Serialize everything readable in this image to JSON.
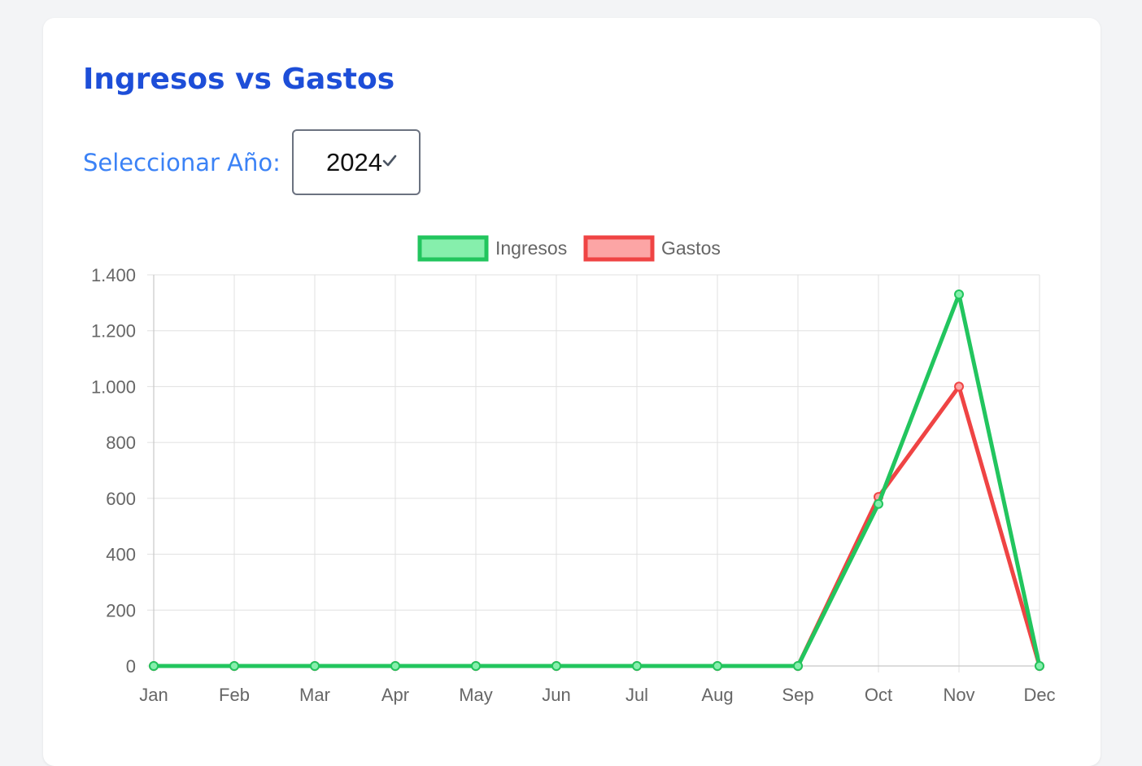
{
  "card": {
    "title": "Ingresos vs Gastos",
    "year_label": "Seleccionar Año:",
    "year_selected": "2024",
    "select_icon": "chevron-down-icon"
  },
  "colors": {
    "title": "#1d4ed8",
    "label": "#3b82f6",
    "ingresos_line": "#22c55e",
    "ingresos_fill": "#86efac",
    "gastos_line": "#ef4444",
    "gastos_fill": "#fca5a5",
    "grid": "#e0e0e0",
    "tick": "#666666"
  },
  "chart_data": {
    "type": "line",
    "categories": [
      "Jan",
      "Feb",
      "Mar",
      "Apr",
      "May",
      "Jun",
      "Jul",
      "Aug",
      "Sep",
      "Oct",
      "Nov",
      "Dec"
    ],
    "series": [
      {
        "name": "Ingresos",
        "values": [
          0,
          0,
          0,
          0,
          0,
          0,
          0,
          0,
          0,
          580,
          1330,
          0
        ]
      },
      {
        "name": "Gastos",
        "values": [
          0,
          0,
          0,
          0,
          0,
          0,
          0,
          0,
          0,
          605,
          1000,
          0
        ]
      }
    ],
    "ylim": [
      0,
      1400
    ],
    "yticks": [
      0,
      200,
      400,
      600,
      800,
      1000,
      1200,
      1400
    ],
    "ytick_labels": [
      "0",
      "200",
      "400",
      "600",
      "800",
      "1.000",
      "1.200",
      "1.400"
    ],
    "grid": true,
    "legend_position": "top-center"
  }
}
